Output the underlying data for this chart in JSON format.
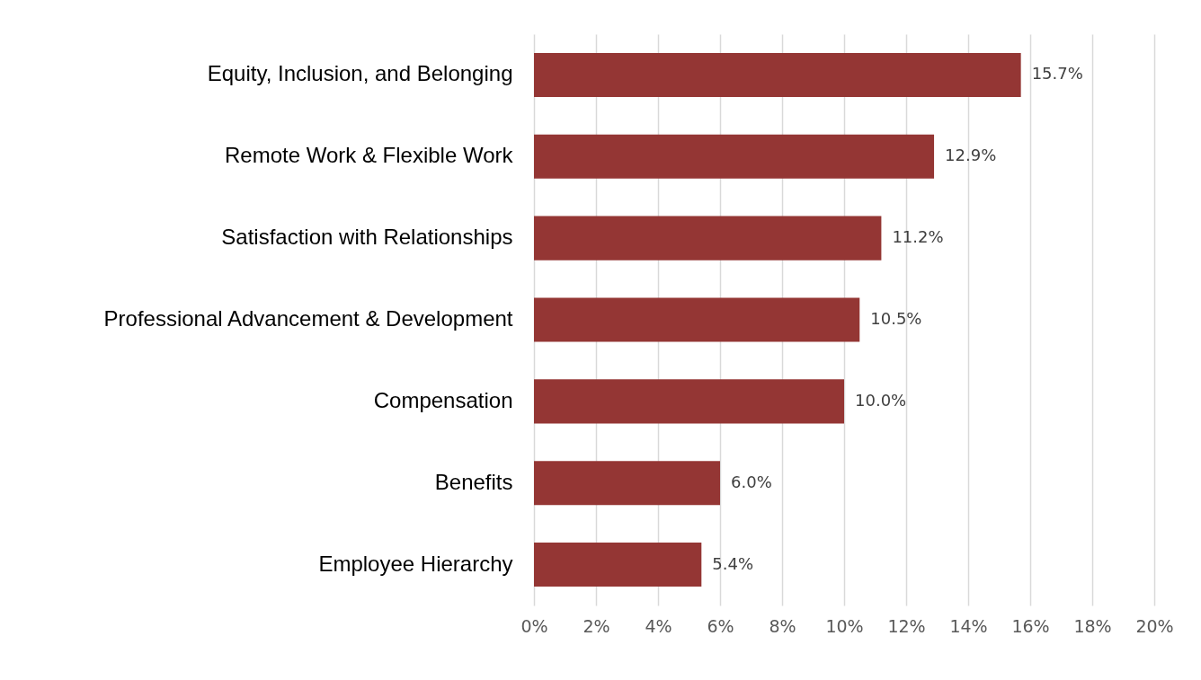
{
  "chart_data": {
    "type": "bar",
    "orientation": "horizontal",
    "categories": [
      "Equity, Inclusion, and Belonging",
      "Remote Work & Flexible Work",
      "Satisfaction with Relationships",
      "Professional Advancement & Development",
      "Compensation",
      "Benefits",
      "Employee Hierarchy"
    ],
    "values": [
      15.7,
      12.9,
      11.2,
      10.5,
      10.0,
      6.0,
      5.4
    ],
    "value_labels": [
      "15.7%",
      "12.9%",
      "11.2%",
      "10.5%",
      "10.0%",
      "6.0%",
      "5.4%"
    ],
    "color": "#943634",
    "xlim": [
      0,
      20
    ],
    "xticks": [
      {
        "value": 0,
        "label": "0%"
      },
      {
        "value": 2,
        "label": "2%"
      },
      {
        "value": 4,
        "label": "4%"
      },
      {
        "value": 6,
        "label": "6%"
      },
      {
        "value": 8,
        "label": "8%"
      },
      {
        "value": 10,
        "label": "10%"
      },
      {
        "value": 12,
        "label": "12%"
      },
      {
        "value": 14,
        "label": "14%"
      },
      {
        "value": 16,
        "label": "16%"
      },
      {
        "value": 18,
        "label": "18%"
      },
      {
        "value": 20,
        "label": "20%"
      }
    ],
    "grid": "x"
  }
}
